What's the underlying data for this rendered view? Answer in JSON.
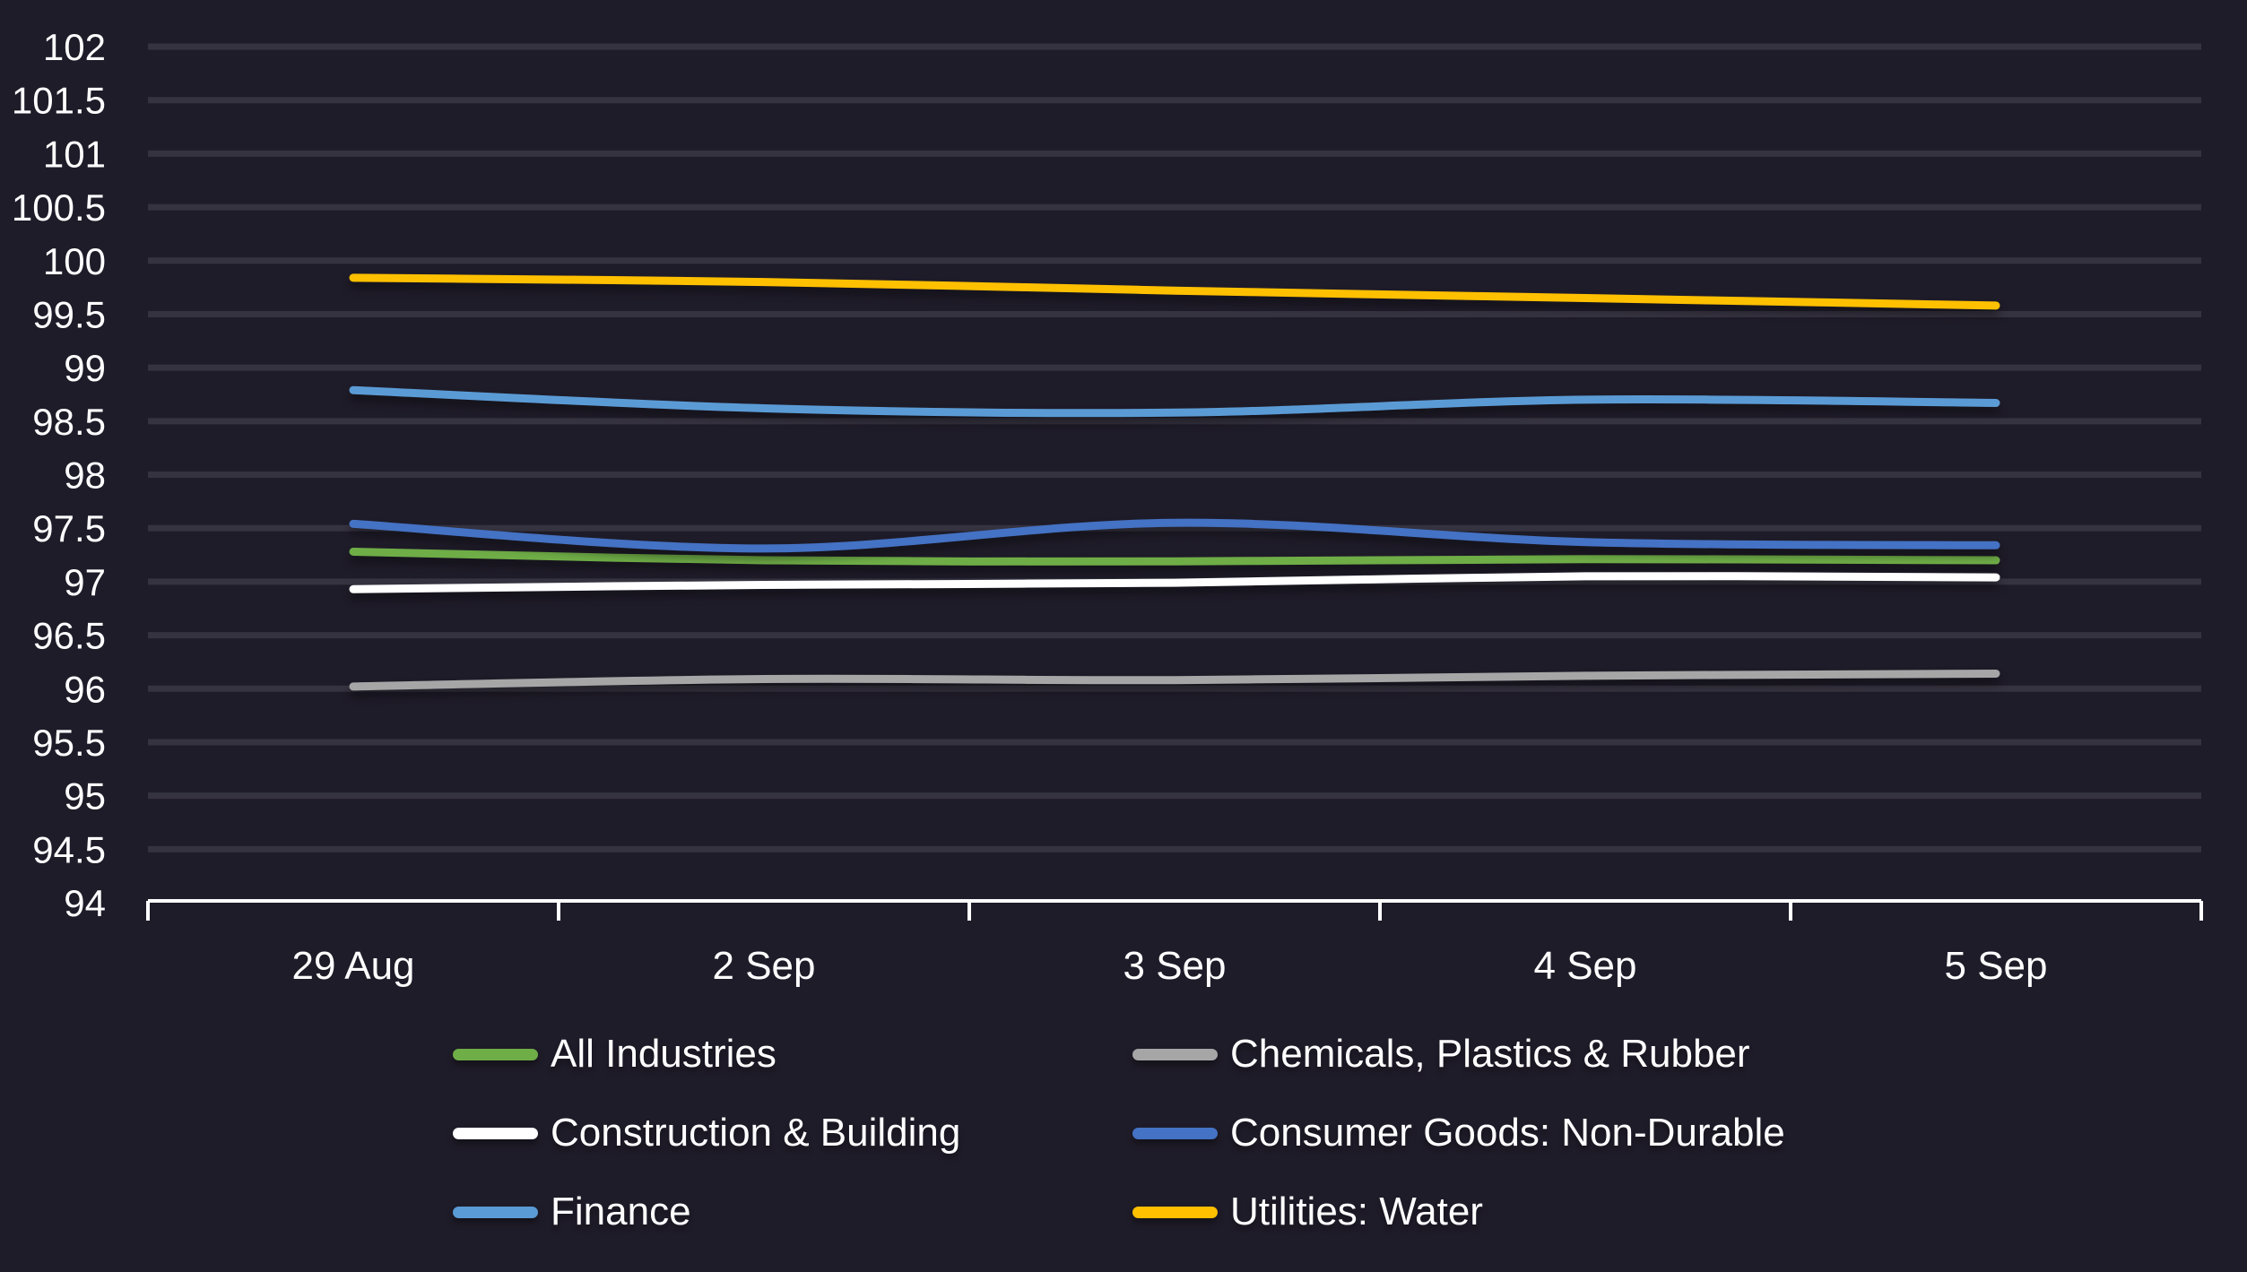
{
  "chart_data": {
    "type": "line",
    "title": "",
    "x_categories": [
      "29 Aug",
      "2 Sep",
      "3 Sep",
      "4 Sep",
      "5 Sep"
    ],
    "series": [
      {
        "name": "All Industries",
        "color": "#6fad47",
        "values": [
          97.28,
          97.2,
          97.19,
          97.21,
          97.2
        ]
      },
      {
        "name": "Chemicals, Plastics & Rubber",
        "color": "#a6a6a6",
        "values": [
          96.02,
          96.09,
          96.08,
          96.12,
          96.14
        ]
      },
      {
        "name": "Construction & Building",
        "color": "#ffffff",
        "values": [
          96.93,
          96.97,
          96.99,
          97.05,
          97.04
        ]
      },
      {
        "name": "Consumer Goods: Non-Durable",
        "color": "#4472c4",
        "values": [
          97.54,
          97.31,
          97.55,
          97.37,
          97.34
        ]
      },
      {
        "name": "Finance",
        "color": "#5b9bd5",
        "values": [
          98.79,
          98.62,
          98.58,
          98.7,
          98.67
        ]
      },
      {
        "name": "Utilities: Water",
        "color": "#ffc000",
        "values": [
          99.84,
          99.8,
          99.72,
          99.65,
          99.58
        ]
      }
    ],
    "ylim": [
      94,
      102
    ],
    "y_tick_step": 0.5,
    "y_tick_labels": [
      "94",
      "94.5",
      "95",
      "95.5",
      "96",
      "96.5",
      "97",
      "97.5",
      "98",
      "98.5",
      "99",
      "99.5",
      "100",
      "100.5",
      "101",
      "101.5",
      "102"
    ],
    "grid": true,
    "legend_position": "bottom",
    "background_color": "#1f1c29",
    "gridline_color": "#363340",
    "axis_color": "#ffffff",
    "label_color": "#ffffff"
  }
}
